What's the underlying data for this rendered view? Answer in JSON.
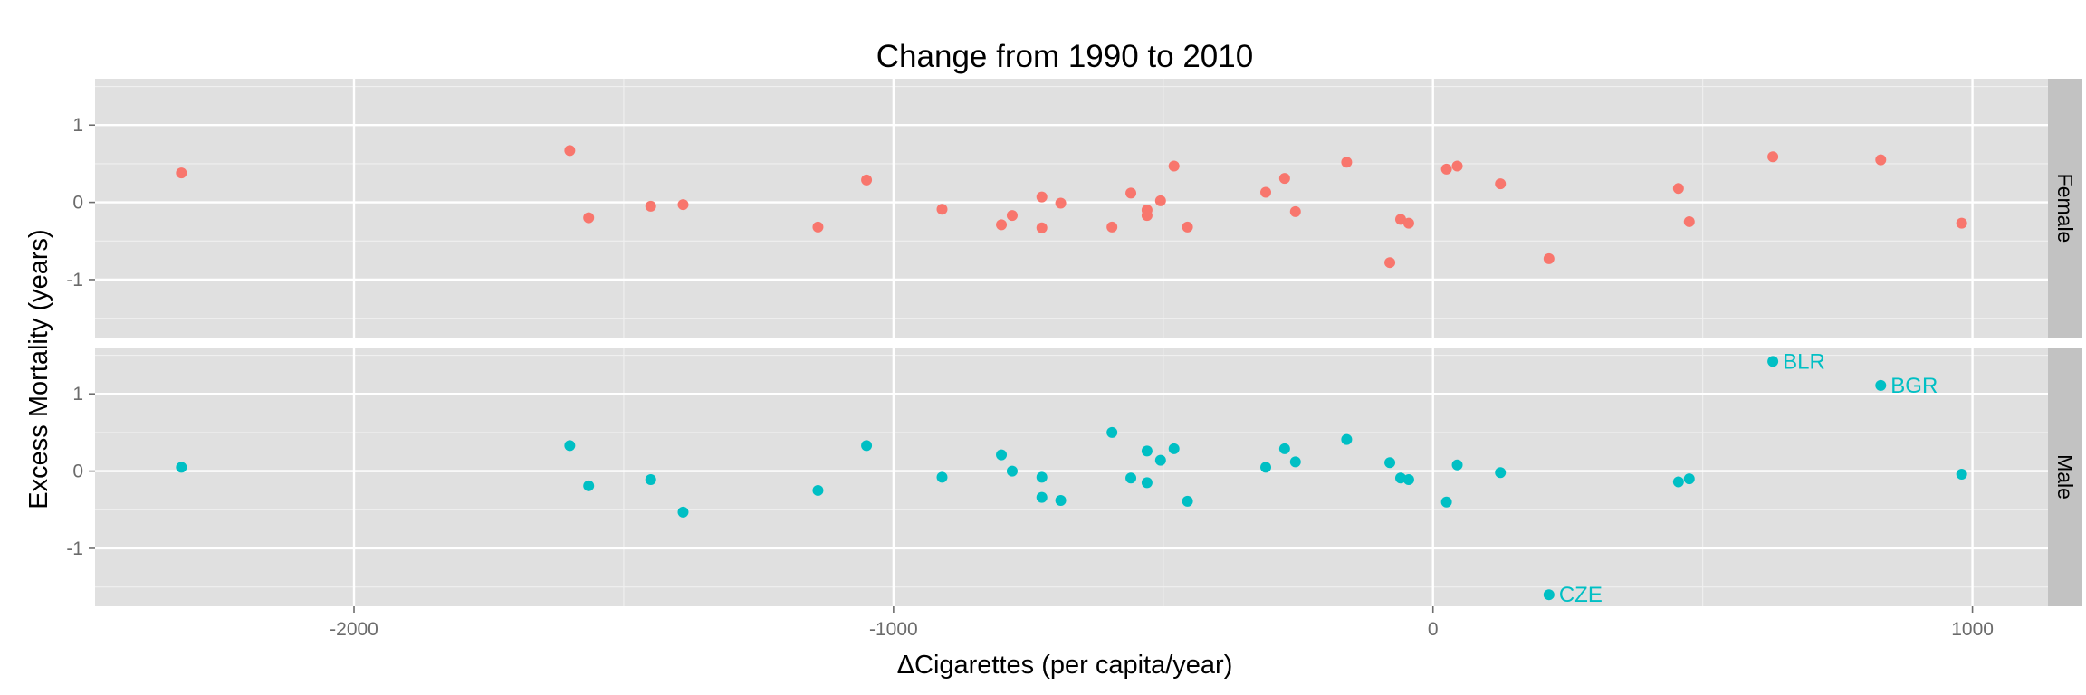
{
  "chart_data": {
    "type": "scatter",
    "title": "Change from 1990 to 2010",
    "xlabel": "ΔCigarettes (per capita/year)",
    "ylabel": "Excess Mortality (years)",
    "xlim": [
      -2480,
      1140
    ],
    "ylim": [
      -1.75,
      1.6
    ],
    "x_ticks": [
      -2000,
      -1000,
      0,
      1000
    ],
    "x_tick_labels": [
      "-2000",
      "-1000",
      "0",
      "1000"
    ],
    "y_ticks": [
      -1,
      0,
      1
    ],
    "y_tick_labels": [
      "-1",
      "0",
      "1"
    ],
    "grid": true,
    "legend": "none",
    "facets": [
      {
        "label": "Female",
        "color": "#f8766d",
        "points": [
          {
            "x": -2320,
            "y": 0.38
          },
          {
            "x": -1600,
            "y": 0.67
          },
          {
            "x": -1565,
            "y": -0.2
          },
          {
            "x": -1450,
            "y": -0.05
          },
          {
            "x": -1390,
            "y": -0.03
          },
          {
            "x": -1140,
            "y": -0.32
          },
          {
            "x": -1050,
            "y": 0.29
          },
          {
            "x": -910,
            "y": -0.09
          },
          {
            "x": -800,
            "y": -0.29
          },
          {
            "x": -780,
            "y": -0.17
          },
          {
            "x": -725,
            "y": 0.07
          },
          {
            "x": -725,
            "y": -0.33
          },
          {
            "x": -690,
            "y": -0.01
          },
          {
            "x": -595,
            "y": -0.32
          },
          {
            "x": -560,
            "y": 0.12
          },
          {
            "x": -530,
            "y": -0.1
          },
          {
            "x": -530,
            "y": -0.17
          },
          {
            "x": -505,
            "y": 0.02
          },
          {
            "x": -480,
            "y": 0.47
          },
          {
            "x": -455,
            "y": -0.32
          },
          {
            "x": -310,
            "y": 0.13
          },
          {
            "x": -275,
            "y": 0.31
          },
          {
            "x": -255,
            "y": -0.12
          },
          {
            "x": -160,
            "y": 0.52
          },
          {
            "x": -80,
            "y": -0.78
          },
          {
            "x": -60,
            "y": -0.22
          },
          {
            "x": -45,
            "y": -0.27
          },
          {
            "x": 25,
            "y": 0.43
          },
          {
            "x": 45,
            "y": 0.47
          },
          {
            "x": 125,
            "y": 0.24
          },
          {
            "x": 215,
            "y": -0.73
          },
          {
            "x": 455,
            "y": 0.18
          },
          {
            "x": 475,
            "y": -0.25
          },
          {
            "x": 630,
            "y": 0.59
          },
          {
            "x": 830,
            "y": 0.55
          },
          {
            "x": 980,
            "y": -0.27
          }
        ]
      },
      {
        "label": "Male",
        "color": "#00bfc4",
        "points": [
          {
            "x": -2320,
            "y": 0.05
          },
          {
            "x": -1600,
            "y": 0.33
          },
          {
            "x": -1565,
            "y": -0.19
          },
          {
            "x": -1450,
            "y": -0.11
          },
          {
            "x": -1390,
            "y": -0.53
          },
          {
            "x": -1140,
            "y": -0.25
          },
          {
            "x": -1050,
            "y": 0.33
          },
          {
            "x": -910,
            "y": -0.08
          },
          {
            "x": -800,
            "y": 0.21
          },
          {
            "x": -780,
            "y": 0.0
          },
          {
            "x": -725,
            "y": -0.08
          },
          {
            "x": -725,
            "y": -0.34
          },
          {
            "x": -690,
            "y": -0.38
          },
          {
            "x": -595,
            "y": 0.5
          },
          {
            "x": -560,
            "y": -0.09
          },
          {
            "x": -530,
            "y": 0.26
          },
          {
            "x": -530,
            "y": -0.15
          },
          {
            "x": -505,
            "y": 0.14
          },
          {
            "x": -480,
            "y": 0.29
          },
          {
            "x": -455,
            "y": -0.39
          },
          {
            "x": -310,
            "y": 0.05
          },
          {
            "x": -275,
            "y": 0.29
          },
          {
            "x": -255,
            "y": 0.12
          },
          {
            "x": -160,
            "y": 0.41
          },
          {
            "x": -80,
            "y": 0.11
          },
          {
            "x": -60,
            "y": -0.09
          },
          {
            "x": -45,
            "y": -0.11
          },
          {
            "x": 25,
            "y": -0.4
          },
          {
            "x": 45,
            "y": 0.08
          },
          {
            "x": 125,
            "y": -0.02
          },
          {
            "x": 215,
            "y": -1.6,
            "label": "CZE"
          },
          {
            "x": 455,
            "y": -0.14
          },
          {
            "x": 475,
            "y": -0.1
          },
          {
            "x": 630,
            "y": 1.42,
            "label": "BLR"
          },
          {
            "x": 830,
            "y": 1.11,
            "label": "BGR"
          },
          {
            "x": 980,
            "y": -0.04
          }
        ]
      }
    ]
  }
}
